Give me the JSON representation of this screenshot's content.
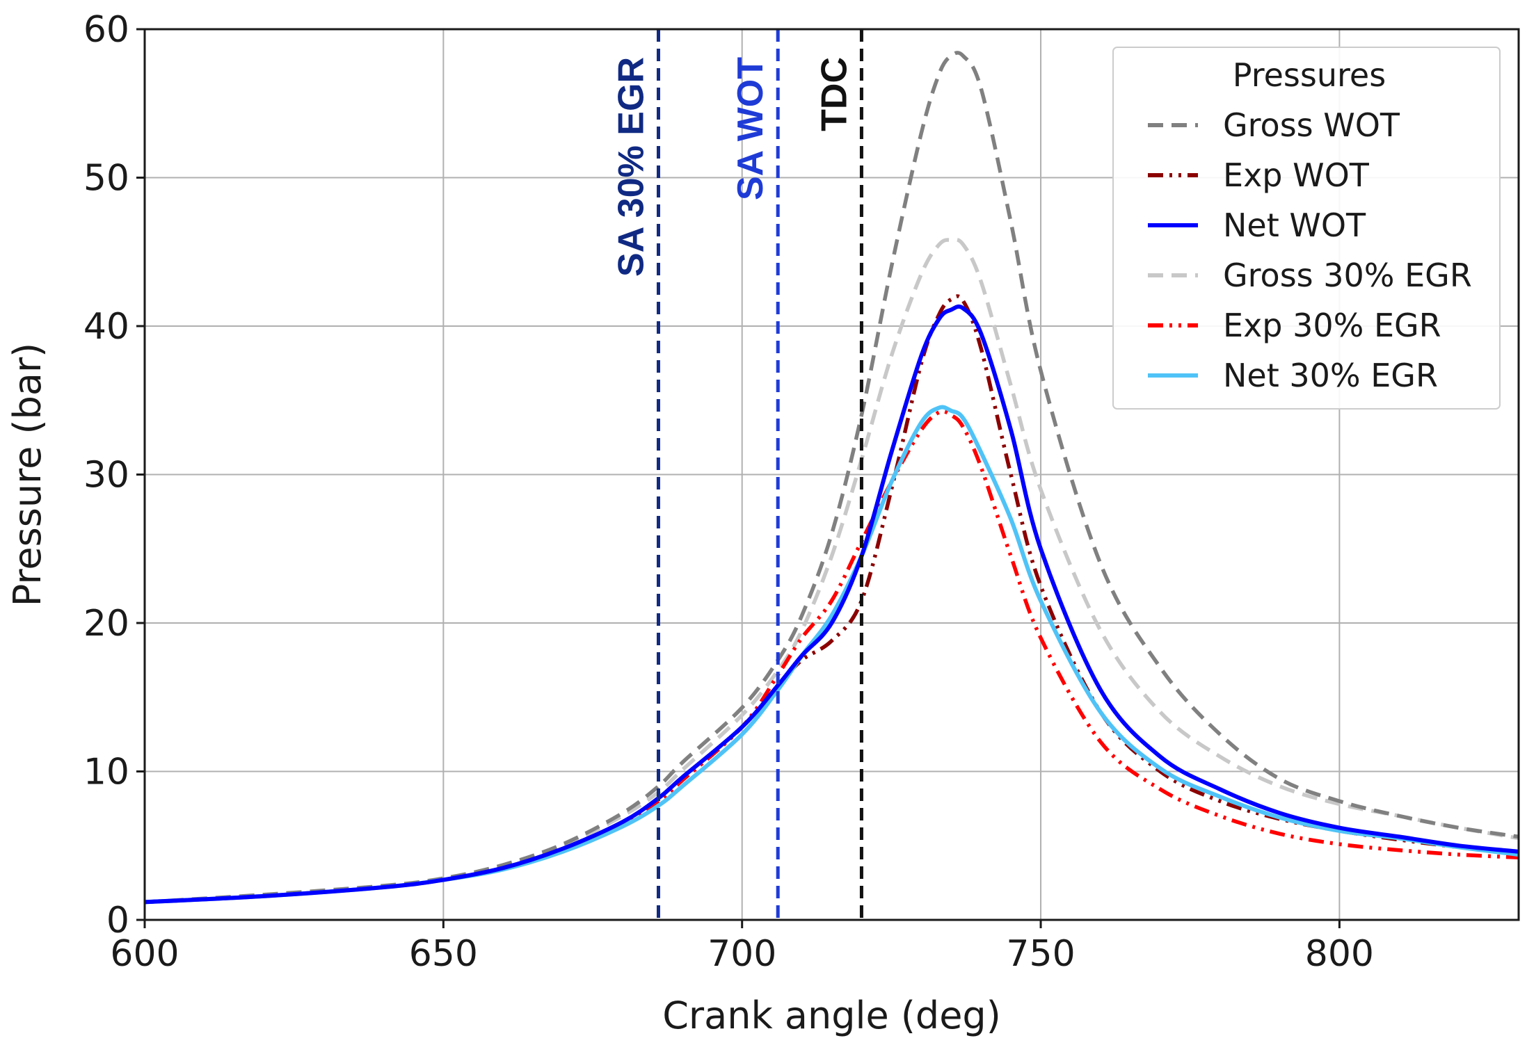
{
  "chart_data": {
    "type": "line",
    "title": "",
    "xlabel": "Crank angle (deg)",
    "ylabel": "Pressure (bar)",
    "xlim": [
      600,
      830
    ],
    "ylim": [
      0,
      60
    ],
    "xticks": [
      600,
      650,
      700,
      750,
      800
    ],
    "yticks": [
      0,
      10,
      20,
      30,
      40,
      50,
      60
    ],
    "grid": true,
    "legend": {
      "title": "Pressures",
      "location": "top-right"
    },
    "x": [
      600,
      620,
      640,
      650,
      660,
      670,
      680,
      686,
      690,
      700,
      706,
      710,
      715,
      720,
      725,
      730,
      733,
      735,
      737,
      740,
      745,
      750,
      760,
      770,
      780,
      790,
      800,
      810,
      820,
      830
    ],
    "series": [
      {
        "name": "Gross WOT",
        "color": "#808080",
        "dash": "dashed",
        "values": [
          1.2,
          1.7,
          2.3,
          2.8,
          3.7,
          5.1,
          7.2,
          9.0,
          10.6,
          14.3,
          17.5,
          20.5,
          26.0,
          34.0,
          44.0,
          53.0,
          57.0,
          58.2,
          58.2,
          56.0,
          47.0,
          37.0,
          24.0,
          17.0,
          12.5,
          9.5,
          8.0,
          7.0,
          6.2,
          5.6
        ]
      },
      {
        "name": "Exp WOT",
        "color": "#8b0000",
        "dash": "dashdotdot",
        "values": [
          1.2,
          1.6,
          2.2,
          2.7,
          3.5,
          4.8,
          6.6,
          8.2,
          9.6,
          13.0,
          15.8,
          17.5,
          18.8,
          21.5,
          29.0,
          37.5,
          40.8,
          41.8,
          41.7,
          38.5,
          30.0,
          22.5,
          14.0,
          10.0,
          8.0,
          6.8,
          6.0,
          5.4,
          4.9,
          4.5
        ]
      },
      {
        "name": "Net WOT",
        "color": "#0000ff",
        "dash": "solid",
        "values": [
          1.2,
          1.6,
          2.2,
          2.7,
          3.5,
          4.8,
          6.6,
          8.2,
          9.6,
          13.0,
          15.8,
          17.8,
          20.0,
          24.5,
          31.5,
          38.0,
          40.5,
          41.1,
          41.2,
          39.5,
          33.0,
          25.0,
          15.5,
          11.0,
          8.8,
          7.2,
          6.2,
          5.6,
          5.0,
          4.6
        ]
      },
      {
        "name": "Gross 30% EGR",
        "color": "#c8c8c8",
        "dash": "dashed",
        "values": [
          1.2,
          1.6,
          2.2,
          2.7,
          3.6,
          5.0,
          7.0,
          8.6,
          10.1,
          13.8,
          16.8,
          19.5,
          24.5,
          31.0,
          38.0,
          43.5,
          45.5,
          45.8,
          45.5,
          43.0,
          36.0,
          29.0,
          19.5,
          14.0,
          11.0,
          9.0,
          7.8,
          7.0,
          6.2,
          5.5
        ]
      },
      {
        "name": "Exp 30% EGR",
        "color": "#ff0000",
        "dash": "dashdotdot",
        "values": [
          1.2,
          1.6,
          2.2,
          2.7,
          3.5,
          4.8,
          6.5,
          8.0,
          9.4,
          13.0,
          16.5,
          19.0,
          21.5,
          25.5,
          29.5,
          33.0,
          34.2,
          34.0,
          33.2,
          30.5,
          24.5,
          19.0,
          12.0,
          8.8,
          7.0,
          5.8,
          5.1,
          4.7,
          4.4,
          4.2
        ]
      },
      {
        "name": "Net 30% EGR",
        "color": "#4fc3f7",
        "dash": "solid",
        "values": [
          1.2,
          1.6,
          2.2,
          2.7,
          3.4,
          4.6,
          6.3,
          7.7,
          9.0,
          12.5,
          15.5,
          17.8,
          20.5,
          24.5,
          29.5,
          33.5,
          34.5,
          34.3,
          33.8,
          31.5,
          27.0,
          21.5,
          14.0,
          10.2,
          8.3,
          6.9,
          6.0,
          5.5,
          4.9,
          4.4
        ]
      }
    ],
    "vertical_lines": [
      {
        "label": "SA 30% EGR",
        "x": 686,
        "color": "#102a83",
        "text_color": "#102a83"
      },
      {
        "label": "SA WOT",
        "x": 706,
        "color": "#1f3bd6",
        "text_color": "#1f3bd6"
      },
      {
        "label": "TDC",
        "x": 720,
        "color": "#111111",
        "text_color": "#111111"
      }
    ]
  }
}
